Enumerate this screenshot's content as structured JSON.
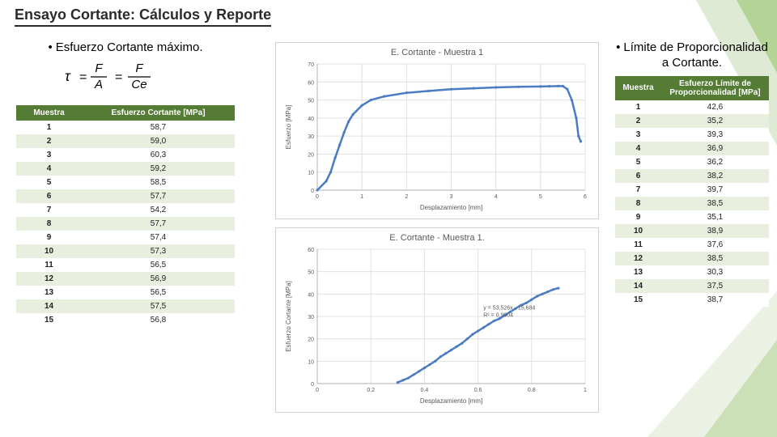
{
  "title": "Ensayo Cortante: Cálculos y Reporte",
  "left": {
    "heading": "Esfuerzo Cortante máximo.",
    "formula_tex": "τ = F/A = F/Ce",
    "table": {
      "headers": [
        "Muestra",
        "Esfuerzo Cortante [MPa]"
      ],
      "rows": [
        [
          "1",
          "58,7"
        ],
        [
          "2",
          "59,0"
        ],
        [
          "3",
          "60,3"
        ],
        [
          "4",
          "59,2"
        ],
        [
          "5",
          "58,5"
        ],
        [
          "6",
          "57,7"
        ],
        [
          "7",
          "54,2"
        ],
        [
          "8",
          "57,7"
        ],
        [
          "9",
          "57,4"
        ],
        [
          "10",
          "57,3"
        ],
        [
          "11",
          "56,5"
        ],
        [
          "12",
          "56,9"
        ],
        [
          "13",
          "56,5"
        ],
        [
          "14",
          "57,5"
        ],
        [
          "15",
          "56,8"
        ]
      ],
      "header_bg": "#547c35",
      "row_alt_bg": "#e8efdf"
    }
  },
  "right": {
    "heading": "Límite de Proporcionalidad a Cortante.",
    "table": {
      "headers": [
        "Muestra",
        "Esfuerzo Límite de Proporcionalidad [MPa]"
      ],
      "rows": [
        [
          "1",
          "42,6"
        ],
        [
          "2",
          "35,2"
        ],
        [
          "3",
          "39,3"
        ],
        [
          "4",
          "36,9"
        ],
        [
          "5",
          "36,2"
        ],
        [
          "6",
          "38,2"
        ],
        [
          "7",
          "39,7"
        ],
        [
          "8",
          "38,5"
        ],
        [
          "9",
          "35,1"
        ],
        [
          "10",
          "38,9"
        ],
        [
          "11",
          "37,6"
        ],
        [
          "12",
          "38,5"
        ],
        [
          "13",
          "30,3"
        ],
        [
          "14",
          "37,5"
        ],
        [
          "15",
          "38,7"
        ]
      ],
      "header_bg": "#547c35",
      "row_alt_bg": "#e8efdf"
    }
  },
  "chart1": {
    "title": "E. Cortante - Muestra 1",
    "type": "line",
    "xlabel": "Desplazamiento [mm]",
    "ylabel": "Esfuerzo [MPa]",
    "xlim": [
      0,
      6
    ],
    "xtick_step": 1,
    "ylim": [
      0,
      70
    ],
    "ytick_step": 10,
    "line_color": "#4a7cc4",
    "grid_color": "#e0e0e0",
    "background_color": "#ffffff",
    "series": [
      [
        0,
        0
      ],
      [
        0.2,
        5
      ],
      [
        0.3,
        10
      ],
      [
        0.4,
        18
      ],
      [
        0.5,
        25
      ],
      [
        0.6,
        32
      ],
      [
        0.7,
        38
      ],
      [
        0.8,
        42
      ],
      [
        1.0,
        47
      ],
      [
        1.2,
        50
      ],
      [
        1.5,
        52
      ],
      [
        2.0,
        54
      ],
      [
        2.5,
        55
      ],
      [
        3.0,
        56
      ],
      [
        3.5,
        56.5
      ],
      [
        4.0,
        57
      ],
      [
        4.5,
        57.3
      ],
      [
        5.0,
        57.5
      ],
      [
        5.2,
        57.6
      ],
      [
        5.4,
        57.7
      ],
      [
        5.5,
        57.7
      ],
      [
        5.6,
        56
      ],
      [
        5.7,
        50
      ],
      [
        5.8,
        40
      ],
      [
        5.85,
        30
      ],
      [
        5.9,
        27
      ]
    ]
  },
  "chart2": {
    "title": "E. Cortante - Muestra 1.",
    "type": "scatter-line",
    "xlabel": "Desplazamiento [mm]",
    "ylabel": "Esfuerzo Cortante [MPa]",
    "xlim": [
      0,
      1.0
    ],
    "xtick_step": 0.2,
    "ylim": [
      0,
      60
    ],
    "ytick_step": 10,
    "line_color": "#4a7cc4",
    "grid_color": "#e0e0e0",
    "background_color": "#ffffff",
    "regression": {
      "eq": "y = 53,526x - 15,684",
      "r2": "R² = 0,9904"
    },
    "series": [
      [
        0.3,
        0.5
      ],
      [
        0.32,
        1.5
      ],
      [
        0.34,
        2.5
      ],
      [
        0.36,
        4
      ],
      [
        0.38,
        5.5
      ],
      [
        0.4,
        7
      ],
      [
        0.42,
        8.5
      ],
      [
        0.44,
        10
      ],
      [
        0.46,
        12
      ],
      [
        0.48,
        13.5
      ],
      [
        0.5,
        15
      ],
      [
        0.52,
        16.5
      ],
      [
        0.54,
        18
      ],
      [
        0.56,
        20
      ],
      [
        0.58,
        22
      ],
      [
        0.6,
        23.5
      ],
      [
        0.62,
        25
      ],
      [
        0.64,
        26.5
      ],
      [
        0.66,
        28
      ],
      [
        0.68,
        29
      ],
      [
        0.7,
        30.5
      ],
      [
        0.72,
        32
      ],
      [
        0.74,
        33.5
      ],
      [
        0.76,
        35
      ],
      [
        0.78,
        36
      ],
      [
        0.8,
        37.5
      ],
      [
        0.82,
        39
      ],
      [
        0.84,
        40
      ],
      [
        0.86,
        41
      ],
      [
        0.88,
        42
      ],
      [
        0.9,
        42.6
      ]
    ]
  },
  "decor_colors": {
    "leaf1": "#c5d8b0",
    "leaf2": "#8fbf63",
    "leaf3": "#5a9a3f"
  }
}
